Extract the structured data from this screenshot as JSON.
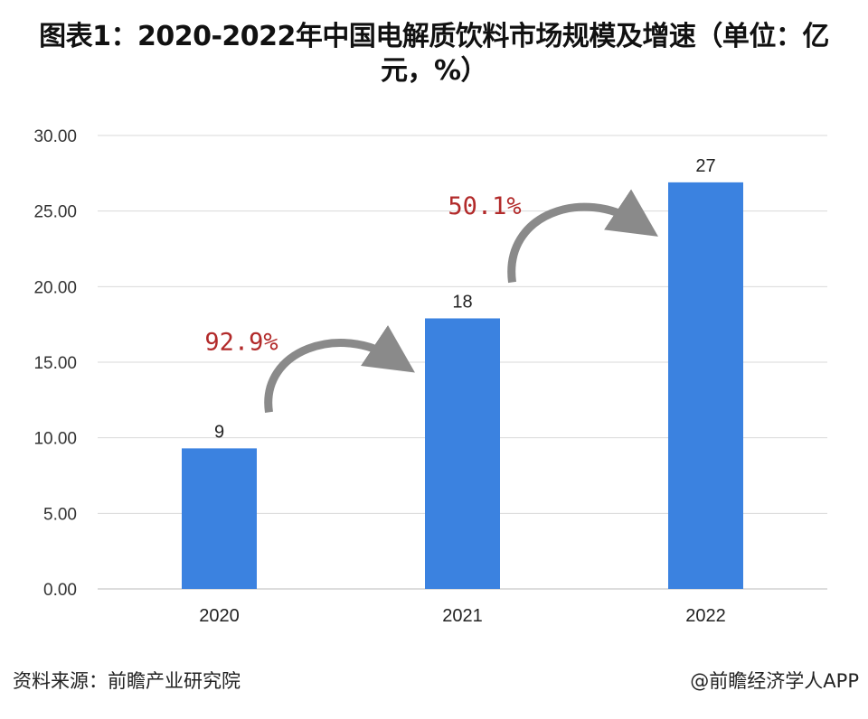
{
  "chart_data": {
    "type": "bar",
    "title": "图表1：2020-2022年中国电解质饮料市场规模及增速（单位：亿元，%）",
    "categories": [
      "2020",
      "2021",
      "2022"
    ],
    "values": [
      9.3,
      17.9,
      26.9
    ],
    "data_labels": [
      "9",
      "18",
      "27"
    ],
    "ylim": [
      0,
      30
    ],
    "yticks": [
      "0.00",
      "5.00",
      "10.00",
      "15.00",
      "20.00",
      "25.00",
      "30.00"
    ],
    "grid": true,
    "bar_color": "#3b82e0",
    "annotations": [
      {
        "text": "92.9%",
        "from": "2020",
        "to": "2021"
      },
      {
        "text": "50.1%",
        "from": "2021",
        "to": "2022"
      }
    ],
    "annotation_color": "#b22a2a",
    "arrow_color": "#8a8a8a"
  },
  "footer": {
    "source": "资料来源：前瞻产业研究院",
    "credit": "@前瞻经济学人APP"
  }
}
